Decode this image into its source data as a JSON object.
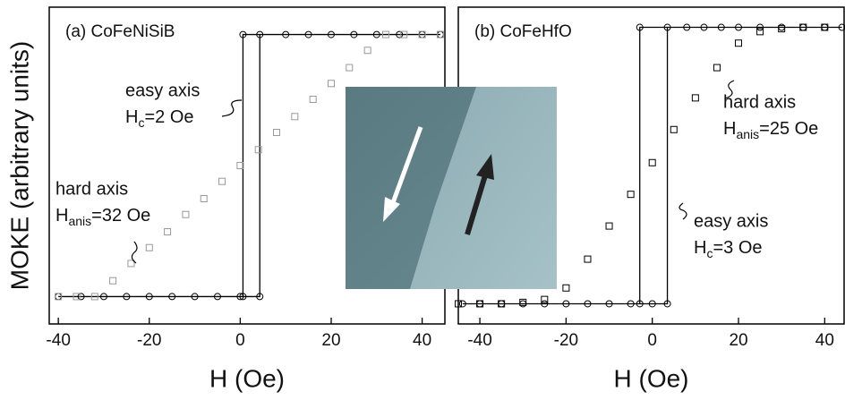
{
  "chart_data": [
    {
      "type": "line",
      "title": "(a) CoFeNiSiB",
      "x_label": "H (Oe)",
      "y_label": "MOKE (arbitrary units)",
      "xlim": [
        -42,
        45
      ],
      "ylim": [
        -1.1,
        1.1
      ],
      "xticks": [
        -40,
        -20,
        0,
        20,
        40
      ],
      "series": [
        {
          "color": "#000000",
          "marker": "circle",
          "line": true,
          "x": [
            -40,
            -35,
            -30,
            -25,
            -20,
            -15,
            -10,
            -5,
            0,
            4.3,
            4.3,
            10,
            15,
            20,
            25,
            30,
            35,
            40,
            44,
            0.6,
            0.6
          ],
          "values": [
            -0.91,
            -0.91,
            -0.91,
            -0.91,
            -0.91,
            -0.91,
            -0.91,
            -0.91,
            -0.91,
            -0.91,
            0.91,
            0.91,
            0.91,
            0.91,
            0.91,
            0.91,
            0.91,
            0.91,
            0.91,
            0.91,
            -0.91
          ]
        },
        {
          "color": "#999999",
          "marker": "square",
          "line": false,
          "x": [
            -40,
            -36,
            -32,
            -28,
            -24,
            -20,
            -16,
            -12,
            -8,
            -4,
            0,
            4,
            8,
            12,
            16,
            20,
            24,
            28,
            32,
            36,
            40,
            44
          ],
          "values": [
            -0.91,
            -0.91,
            -0.91,
            -0.8,
            -0.68,
            -0.57,
            -0.46,
            -0.34,
            -0.23,
            -0.11,
            0,
            0.11,
            0.23,
            0.34,
            0.46,
            0.57,
            0.68,
            0.8,
            0.91,
            0.91,
            0.91,
            0.91
          ]
        }
      ],
      "annotations": [
        {
          "title": "easy axis",
          "symbol": "H",
          "subscript": "c",
          "value": "=2 Oe"
        },
        {
          "title": "hard axis",
          "symbol": "H",
          "subscript": "anis",
          "value": "=32 Oe"
        }
      ]
    },
    {
      "type": "line",
      "title": "(b) CoFeHfO",
      "x_label": "H (Oe)",
      "xlim": [
        -45,
        44.5
      ],
      "ylim": [
        -1.1,
        1.1
      ],
      "xticks": [
        -40,
        -20,
        0,
        20,
        40
      ],
      "series": [
        {
          "color": "#000000",
          "marker": "circle",
          "line": true,
          "x": [
            -44,
            -40,
            -35,
            -30,
            -25,
            -20,
            -15,
            -10,
            -5,
            0,
            3.5,
            3.5,
            8,
            12,
            16,
            20,
            25,
            30,
            35,
            40,
            44,
            -2.9,
            -2.9
          ],
          "values": [
            -0.96,
            -0.96,
            -0.96,
            -0.96,
            -0.96,
            -0.96,
            -0.96,
            -0.96,
            -0.96,
            -0.96,
            -0.96,
            0.96,
            0.96,
            0.96,
            0.96,
            0.96,
            0.96,
            0.96,
            0.96,
            0.96,
            0.96,
            0.96,
            -0.96
          ]
        },
        {
          "color": "#000000",
          "marker": "square",
          "line": false,
          "x": [
            -45,
            -40,
            -35,
            -30,
            -25,
            -20,
            -15,
            -10,
            -5,
            0,
            5,
            10,
            15,
            20,
            25,
            30,
            35,
            40
          ],
          "values": [
            -0.96,
            -0.96,
            -0.96,
            -0.95,
            -0.93,
            -0.85,
            -0.65,
            -0.42,
            -0.2,
            0.02,
            0.25,
            0.47,
            0.68,
            0.85,
            0.93,
            0.95,
            0.96,
            0.96
          ]
        }
      ],
      "annotations": [
        {
          "title": "hard axis",
          "symbol": "H",
          "subscript": "anis",
          "value": "=25 Oe"
        },
        {
          "title": "easy axis",
          "symbol": "H",
          "subscript": "c",
          "value": "=3 Oe"
        }
      ]
    }
  ]
}
